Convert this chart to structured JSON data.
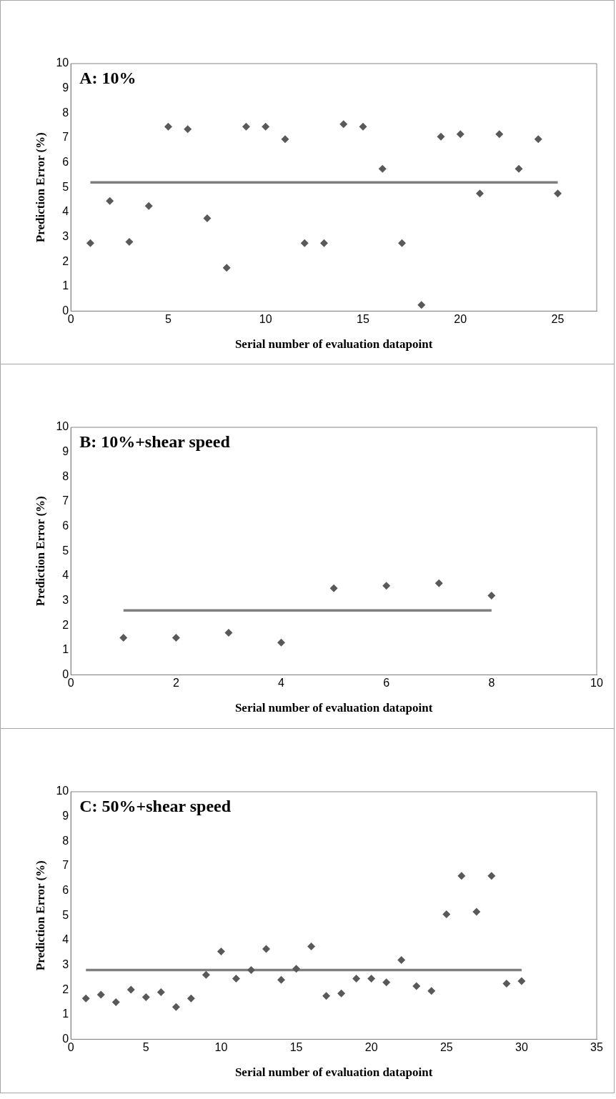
{
  "chart_data": [
    {
      "type": "scatter",
      "title": "A: 10%",
      "xlabel": "Serial number of evaluation datapoint",
      "ylabel": "Prediction Error (%)",
      "xlim": [
        0,
        27
      ],
      "xticks": [
        0,
        5,
        10,
        15,
        20,
        25
      ],
      "ylim": [
        0,
        10
      ],
      "yticks": [
        0,
        1,
        2,
        3,
        4,
        5,
        6,
        7,
        8,
        9,
        10
      ],
      "grid": false,
      "legend": false,
      "marker": "diamond",
      "series": [
        {
          "color": "#595959",
          "x": [
            1,
            2,
            3,
            4,
            5,
            6,
            7,
            8,
            9,
            10,
            11,
            12,
            13,
            14,
            15,
            16,
            17,
            18,
            19,
            20,
            21,
            22,
            23,
            24,
            25
          ],
          "values": [
            2.75,
            4.45,
            2.8,
            4.25,
            7.45,
            7.35,
            3.75,
            1.75,
            7.45,
            7.45,
            6.95,
            2.75,
            2.75,
            7.55,
            7.45,
            5.75,
            2.75,
            0.25,
            7.05,
            7.15,
            4.75,
            7.15,
            5.75,
            6.95,
            4.75
          ]
        },
        {
          "type": "line",
          "marker": "none",
          "color": "#7f7f7f",
          "x": [
            1,
            25
          ],
          "values": [
            5.2,
            5.2
          ]
        }
      ]
    },
    {
      "type": "scatter",
      "title": "B: 10%+shear speed",
      "xlabel": "Serial number of evaluation datapoint",
      "ylabel": "Prediction Error (%)",
      "xlim": [
        0,
        10
      ],
      "xticks": [
        0,
        2,
        4,
        6,
        8,
        10
      ],
      "ylim": [
        0,
        10
      ],
      "yticks": [
        0,
        1,
        2,
        3,
        4,
        5,
        6,
        7,
        8,
        9,
        10
      ],
      "grid": false,
      "legend": false,
      "marker": "diamond",
      "series": [
        {
          "color": "#595959",
          "x": [
            1,
            2,
            3,
            4,
            5,
            6,
            7,
            8
          ],
          "values": [
            1.5,
            1.5,
            1.7,
            1.3,
            3.5,
            3.6,
            3.7,
            3.2
          ]
        },
        {
          "type": "line",
          "marker": "none",
          "color": "#7f7f7f",
          "x": [
            1,
            8
          ],
          "values": [
            2.6,
            2.6
          ]
        }
      ]
    },
    {
      "type": "scatter",
      "title": "C: 50%+shear speed",
      "xlabel": "Serial number of evaluation datapoint",
      "ylabel": "Prediction Error (%)",
      "xlim": [
        0,
        35
      ],
      "xticks": [
        0,
        5,
        10,
        15,
        20,
        25,
        30,
        35
      ],
      "ylim": [
        0,
        10
      ],
      "yticks": [
        0,
        1,
        2,
        3,
        4,
        5,
        6,
        7,
        8,
        9,
        10
      ],
      "grid": false,
      "legend": false,
      "marker": "diamond",
      "series": [
        {
          "color": "#595959",
          "x": [
            1,
            2,
            3,
            4,
            5,
            6,
            7,
            8,
            9,
            10,
            11,
            12,
            13,
            14,
            15,
            16,
            17,
            18,
            19,
            20,
            21,
            22,
            23,
            24,
            25,
            26,
            27,
            28,
            29,
            30
          ],
          "values": [
            1.65,
            1.8,
            1.5,
            2.0,
            1.7,
            1.9,
            1.3,
            1.65,
            2.6,
            3.55,
            2.45,
            2.8,
            3.65,
            2.4,
            2.85,
            3.75,
            1.75,
            1.85,
            2.45,
            2.45,
            2.3,
            3.2,
            2.15,
            1.95,
            5.05,
            6.6,
            5.15,
            6.6,
            2.25,
            2.35
          ]
        },
        {
          "type": "line",
          "marker": "none",
          "color": "#7f7f7f",
          "x": [
            1,
            30
          ],
          "values": [
            2.8,
            2.8
          ]
        }
      ]
    }
  ]
}
